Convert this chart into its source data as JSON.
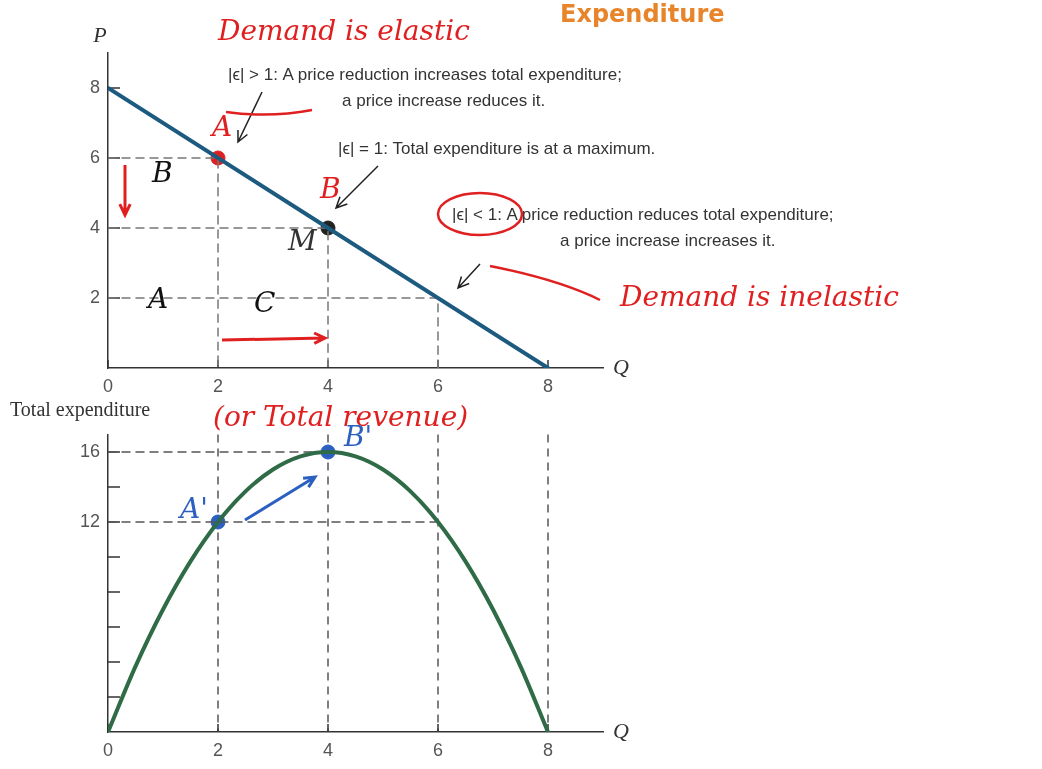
{
  "chart_data": [
    {
      "type": "line",
      "title": "Expenditure",
      "ylabel": "P",
      "xlabel": "Q",
      "xlim": [
        0,
        9
      ],
      "ylim": [
        0,
        9
      ],
      "xticks": [
        0,
        2,
        4,
        6,
        8
      ],
      "yticks": [
        2,
        4,
        6,
        8
      ],
      "grid": false,
      "legend": false,
      "series": [
        {
          "color": "#1d5a80",
          "x": [
            0,
            8
          ],
          "values": [
            8,
            0
          ]
        },
        {
          "color": "#777777",
          "line_style": "dashed",
          "x": [
            0,
            2,
            2
          ],
          "values": [
            6,
            6,
            0
          ]
        },
        {
          "color": "#777777",
          "line_style": "dashed",
          "x": [
            0,
            4,
            4
          ],
          "values": [
            4,
            4,
            0
          ]
        },
        {
          "color": "#777777",
          "line_style": "dashed",
          "x": [
            0,
            6,
            6
          ],
          "values": [
            2,
            2,
            0
          ]
        },
        {
          "type": "scatter",
          "color": "#e02020",
          "x": [
            2
          ],
          "values": [
            6
          ]
        },
        {
          "type": "scatter",
          "color": "#222222",
          "x": [
            4
          ],
          "values": [
            4
          ]
        }
      ],
      "annotations": [
        "|ϵ| > 1: A price reduction increases total expenditure;\na price increase reduces it.",
        "|ϵ| = 1: Total expenditure is at a maximum.",
        "|ϵ| < 1: A price reduction reduces total expenditure;\na price increase increases it.",
        "Demand is elastic",
        "Demand is inelastic",
        "A",
        "B",
        "M",
        "A",
        "B",
        "C"
      ]
    },
    {
      "type": "line",
      "ylabel": "Total expenditure",
      "xlabel": "Q",
      "xlim": [
        0,
        9
      ],
      "ylim": [
        0,
        17
      ],
      "xticks": [
        0,
        2,
        4,
        6,
        8
      ],
      "yticks": [
        {
          "value": 2,
          "label": null
        },
        {
          "value": 4,
          "label": null
        },
        {
          "value": 6,
          "label": null
        },
        {
          "value": 8,
          "label": null
        },
        {
          "value": 10,
          "label": null
        },
        12,
        {
          "value": 14,
          "label": null
        },
        16
      ],
      "grid": false,
      "legend": false,
      "series": [
        {
          "color": "#2e6b46",
          "x": [
            0,
            0.5,
            1,
            1.5,
            2,
            2.5,
            3,
            3.5,
            4,
            4.5,
            5,
            5.5,
            6,
            6.5,
            7,
            7.5,
            8
          ],
          "values": [
            0,
            3.75,
            7,
            9.75,
            12,
            13.75,
            15,
            15.75,
            16,
            15.75,
            15,
            13.75,
            12,
            9.75,
            7,
            3.75,
            0
          ]
        },
        {
          "color": "#555555",
          "line_style": "dashed",
          "x": [
            0,
            4
          ],
          "values": [
            16,
            16
          ]
        },
        {
          "color": "#555555",
          "line_style": "dashed",
          "x": [
            0,
            6
          ],
          "values": [
            12,
            12
          ]
        },
        {
          "type": "scatter",
          "color": "#2b5fc0",
          "x": [
            2,
            4
          ],
          "values": [
            12,
            16
          ]
        }
      ],
      "ref_lines": [
        {
          "axis": "x",
          "value": 2,
          "color": "#555555",
          "line_style": "dashed"
        },
        {
          "axis": "x",
          "value": 4,
          "color": "#555555",
          "line_style": "dashed"
        },
        {
          "axis": "x",
          "value": 6,
          "color": "#555555",
          "line_style": "dashed"
        },
        {
          "axis": "x",
          "value": 8,
          "color": "#555555",
          "line_style": "dashed"
        }
      ],
      "annotations": [
        "(or Total revenue)",
        "A'",
        "B'"
      ]
    }
  ]
}
